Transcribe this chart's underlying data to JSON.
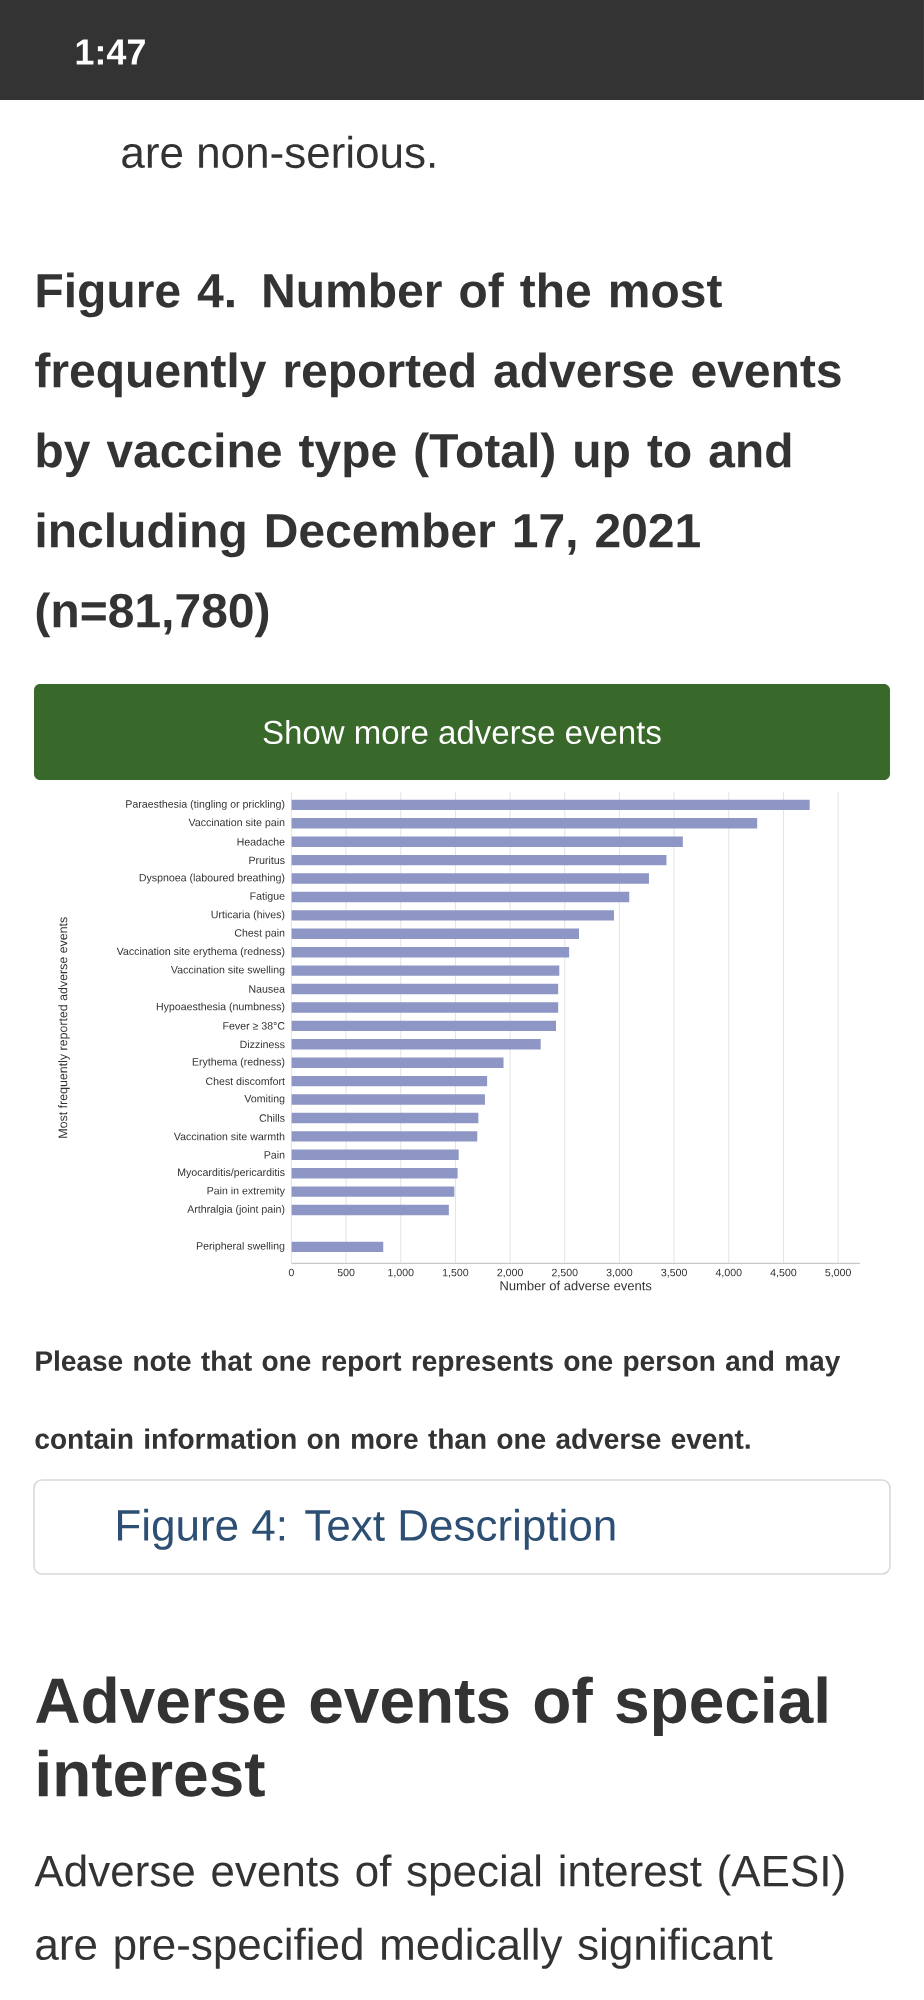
{
  "chart_data": {
    "type": "bar",
    "orientation": "horizontal",
    "title": "Figure 4. Number of the most frequently reported adverse events by vaccine type (Total) up to and including December 17, 2021 (n=81,780)",
    "xlabel": "Number of adverse events",
    "ylabel": "Most frequently reported adverse events",
    "categories": [
      "Paraesthesia (tingling or prickling)",
      "Vaccination site pain",
      "Headache",
      "Pruritus",
      "Dyspnoea (laboured breathing)",
      "Fatigue",
      "Urticaria (hives)",
      "Chest pain",
      "Vaccination site erythema (redness)",
      "Vaccination site swelling",
      "Nausea",
      "Hypoaesthesia (numbness)",
      "Fever ≥ 38°C",
      "Dizziness",
      "Erythema (redness)",
      "Chest discomfort",
      "Vomiting",
      "Chills",
      "Vaccination site warmth",
      "Pain",
      "Myocarditis/pericarditis",
      "Pain in extremity",
      "Arthralgia (joint pain)",
      null,
      "Peripheral swelling"
    ],
    "values": [
      4740,
      4260,
      3580,
      3430,
      3270,
      3090,
      2950,
      2630,
      2540,
      2450,
      2440,
      2440,
      2420,
      2280,
      1940,
      1790,
      1770,
      1710,
      1700,
      1530,
      1520,
      1490,
      1440,
      null,
      840
    ],
    "color": "#8e96c5",
    "xlim": [
      0,
      5200
    ],
    "xticks": [
      0,
      500,
      {
        "value": 1000,
        "label": "1,000"
      },
      {
        "value": 1500,
        "label": "1,500"
      },
      {
        "value": 2000,
        "label": "2,000"
      },
      {
        "value": 2500,
        "label": "2,500"
      },
      {
        "value": 3000,
        "label": "3,000"
      },
      {
        "value": 3500,
        "label": "3,500"
      },
      {
        "value": 4000,
        "label": "4,000"
      },
      {
        "value": 4500,
        "label": "4,500"
      },
      {
        "value": 5000,
        "label": "5,000"
      }
    ],
    "grid": "x",
    "annotations": [
      "1:47",
      "are non-serious.",
      "Show more adverse events",
      "Please note that one report represents one person and may contain information on more than one adverse event.",
      "Figure 4: Text Description",
      "Adverse events of special interest",
      "Adverse events of special interest (AESI) are pre-specified medically significant"
    ]
  }
}
